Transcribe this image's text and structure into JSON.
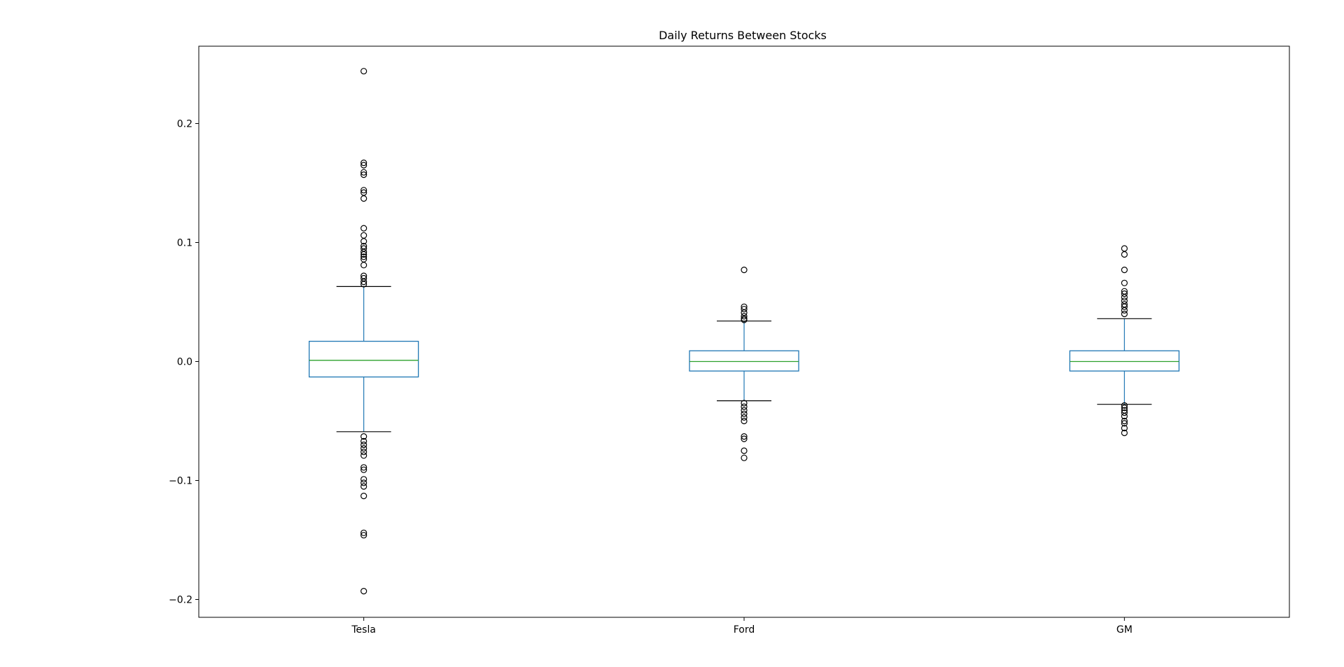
{
  "chart_data": {
    "type": "box",
    "title": "Daily Returns Between Stocks",
    "xlabel": "",
    "ylabel": "",
    "ylim": [
      -0.215,
      0.265
    ],
    "yticks": [
      {
        "value": -0.2,
        "label": "−0.2"
      },
      {
        "value": -0.1,
        "label": "−0.1"
      },
      {
        "value": 0.0,
        "label": "0.0"
      },
      {
        "value": 0.1,
        "label": "0.1"
      },
      {
        "value": 0.2,
        "label": "0.2"
      }
    ],
    "grid": false,
    "colors": {
      "box": "#1f77b4",
      "median": "#2ca02c",
      "whisker_cap": "#000000",
      "flier": "#000000",
      "axes": "#000000"
    },
    "categories": [
      "Tesla",
      "Ford",
      "GM"
    ],
    "boxes": [
      {
        "name": "Tesla",
        "whisker_low": -0.059,
        "q1": -0.013,
        "median": 0.001,
        "q3": 0.017,
        "whisker_high": 0.063,
        "fliers": [
          0.244,
          0.167,
          0.165,
          0.159,
          0.157,
          0.144,
          0.142,
          0.137,
          0.112,
          0.106,
          0.101,
          0.097,
          0.095,
          0.092,
          0.09,
          0.088,
          0.086,
          0.081,
          0.072,
          0.07,
          0.067,
          0.065,
          -0.063,
          -0.067,
          -0.07,
          -0.073,
          -0.076,
          -0.079,
          -0.089,
          -0.091,
          -0.099,
          -0.102,
          -0.105,
          -0.113,
          -0.144,
          -0.146,
          -0.193
        ]
      },
      {
        "name": "Ford",
        "whisker_low": -0.033,
        "q1": -0.008,
        "median": 0.0,
        "q3": 0.009,
        "whisker_high": 0.034,
        "fliers": [
          0.077,
          0.046,
          0.044,
          0.041,
          0.038,
          0.036,
          0.035,
          -0.035,
          -0.038,
          -0.041,
          -0.044,
          -0.047,
          -0.05,
          -0.063,
          -0.065,
          -0.075,
          -0.081
        ]
      },
      {
        "name": "GM",
        "whisker_low": -0.036,
        "q1": -0.008,
        "median": 0.0,
        "q3": 0.009,
        "whisker_high": 0.036,
        "fliers": [
          0.095,
          0.09,
          0.077,
          0.066,
          0.059,
          0.057,
          0.054,
          0.051,
          0.048,
          0.046,
          0.043,
          0.04,
          -0.037,
          -0.039,
          -0.041,
          -0.043,
          -0.046,
          -0.05,
          -0.052,
          -0.056,
          -0.06
        ]
      }
    ]
  }
}
